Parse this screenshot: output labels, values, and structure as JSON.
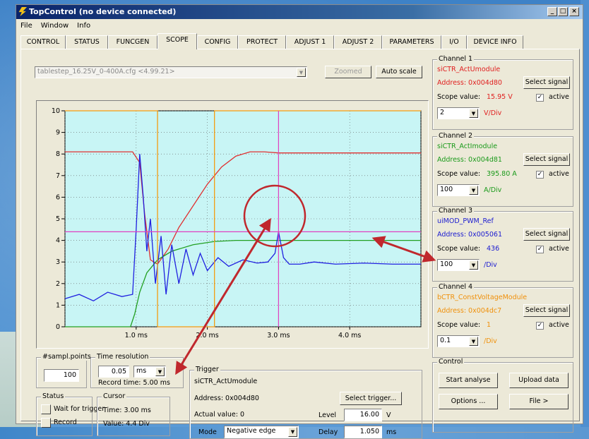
{
  "window": {
    "title": "TopControl (no device connected)",
    "controls": {
      "minimize": "_",
      "maximize": "□",
      "close": "×"
    }
  },
  "menu": [
    "File",
    "Window",
    "Info"
  ],
  "tabs": [
    "CONTROL",
    "STATUS",
    "FUNCGEN",
    "SCOPE",
    "CONFIG",
    "PROTECT",
    "ADJUST 1",
    "ADJUST 2",
    "PARAMETERS",
    "I/O",
    "DEVICE INFO"
  ],
  "active_tab": "SCOPE",
  "scope": {
    "file_select": "tablestep_16.25V_0-400A.cfg <4.99.21>",
    "zoomed_label": "Zoomed",
    "auto_scale_label": "Auto scale"
  },
  "chart_data": {
    "type": "line",
    "x_ticks": [
      "1.0 ms",
      "2.0 ms",
      "3.0 ms",
      "4.0 ms"
    ],
    "y_ticks": [
      "0",
      "1",
      "2",
      "3",
      "4",
      "5",
      "6",
      "7",
      "8",
      "9",
      "10"
    ],
    "xlim": [
      0,
      5.0
    ],
    "ylim": [
      0,
      10
    ],
    "cursor_time_ms": 3.0,
    "cursor_value_div": 4.4,
    "series": [
      {
        "color": "#e03030",
        "x": [
          0,
          0.95,
          1.05,
          1.12,
          1.2,
          1.3,
          1.45,
          1.6,
          1.8,
          2.0,
          2.2,
          2.4,
          2.6,
          2.8,
          3.0,
          3.3,
          3.6,
          4.0,
          4.5,
          5.0
        ],
        "y": [
          8.1,
          8.1,
          7.6,
          5.2,
          3.1,
          2.9,
          3.6,
          4.6,
          5.6,
          6.6,
          7.4,
          7.9,
          8.1,
          8.1,
          8.05,
          8.05,
          8.05,
          8.05,
          8.05,
          8.05
        ]
      },
      {
        "color": "#22a022",
        "x": [
          0,
          0.92,
          0.98,
          1.05,
          1.15,
          1.3,
          1.5,
          1.8,
          2.1,
          2.4,
          2.8,
          3.2,
          3.6,
          4.0,
          4.5,
          5.0
        ],
        "y": [
          0,
          0,
          0.6,
          1.6,
          2.5,
          3.1,
          3.5,
          3.8,
          3.95,
          4.0,
          4.0,
          4.0,
          4.0,
          4.0,
          4.0,
          4.0
        ]
      },
      {
        "color": "#2020e0",
        "x": [
          0,
          0.2,
          0.4,
          0.6,
          0.8,
          0.95,
          1.0,
          1.05,
          1.1,
          1.15,
          1.2,
          1.27,
          1.35,
          1.42,
          1.5,
          1.6,
          1.7,
          1.8,
          1.9,
          2.0,
          2.15,
          2.3,
          2.5,
          2.7,
          2.85,
          2.95,
          3.0,
          3.07,
          3.15,
          3.3,
          3.5,
          3.8,
          4.2,
          4.6,
          5.0
        ],
        "y": [
          1.3,
          1.5,
          1.2,
          1.6,
          1.4,
          1.5,
          4.5,
          8.0,
          6.0,
          3.5,
          5.0,
          2.0,
          4.2,
          1.5,
          3.8,
          2.0,
          3.6,
          2.4,
          3.4,
          2.6,
          3.2,
          2.8,
          3.1,
          2.95,
          3.0,
          3.4,
          4.4,
          3.2,
          2.9,
          2.9,
          3.0,
          2.9,
          2.95,
          2.9,
          2.9
        ]
      },
      {
        "color": "#f39c12",
        "x": [
          0,
          1.3,
          1.3,
          2.1,
          2.1,
          5.0
        ],
        "y": [
          10,
          10,
          0,
          0,
          10,
          10
        ],
        "clip": true
      }
    ],
    "cursor_h_y": 4.4
  },
  "samples": {
    "legend": "#sampl.points",
    "value": "100"
  },
  "time_res": {
    "legend": "Time resolution",
    "value": "0.05",
    "unit": "ms",
    "record_time": "Record time: 5.00 ms"
  },
  "trigger": {
    "legend": "Trigger",
    "signal": "siCTR_ActUmodule",
    "address": "Address: 0x004d80",
    "select_label": "Select trigger...",
    "actual": "Actual value: 0",
    "level_label": "Level",
    "level_value": "16.00",
    "level_unit": "V",
    "mode_label": "Mode",
    "mode_value": "Negative edge",
    "delay_label": "Delay",
    "delay_value": "1.050",
    "delay_unit": "ms"
  },
  "status": {
    "legend": "Status",
    "wait_label": "Wait for trigger",
    "record_label": "Record"
  },
  "cursor": {
    "legend": "Cursor",
    "time": "Time: 3.00 ms",
    "value": "Value: 4.4 Div"
  },
  "channels": [
    {
      "legend": "Channel 1",
      "signal": "siCTR_ActUmodule",
      "address": "Address: 0x004d80",
      "scope_value_label": "Scope value:",
      "scope_value": "15.95 V",
      "div_value": "2",
      "div_unit": "V/Div",
      "select_label": "Select signal",
      "active_label": "active",
      "color": "#e02020"
    },
    {
      "legend": "Channel 2",
      "signal": "siCTR_ActImodule",
      "address": "Address: 0x004d81",
      "scope_value_label": "Scope value:",
      "scope_value": "395.80 A",
      "div_value": "100",
      "div_unit": "A/Div",
      "select_label": "Select signal",
      "active_label": "active",
      "color": "#1a9a1a"
    },
    {
      "legend": "Channel 3",
      "signal": "uiMOD_PWM_Ref",
      "address": "Address: 0x005061",
      "scope_value_label": "Scope value:",
      "scope_value": "436",
      "div_value": "100",
      "div_unit": "/Div",
      "select_label": "Select signal",
      "active_label": "active",
      "color": "#1a1ad0"
    },
    {
      "legend": "Channel 4",
      "signal": "bCTR_ConstVoltageModule",
      "address": "Address: 0x004dc7",
      "scope_value_label": "Scope value:",
      "scope_value": "1",
      "div_value": "0.1",
      "div_unit": "/Div",
      "select_label": "Select signal",
      "active_label": "active",
      "color": "#f0900a"
    }
  ],
  "control": {
    "legend": "Control",
    "start_label": "Start analyse",
    "upload_label": "Upload data",
    "options_label": "Options ...",
    "file_label": "File >"
  }
}
